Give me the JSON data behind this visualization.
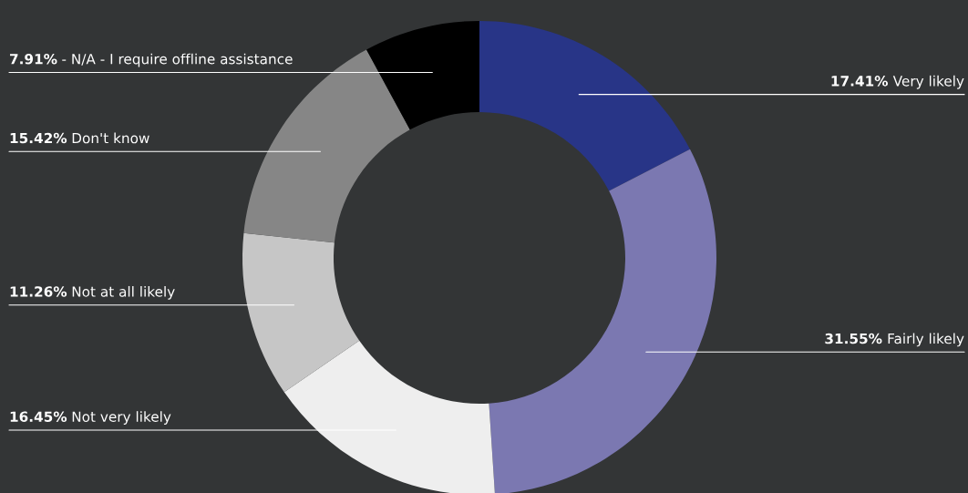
{
  "chart_data": {
    "type": "donut",
    "categories": [
      "Very likely",
      "Fairly likely",
      "Not very likely",
      "Not at all likely",
      "Don't know",
      "- N/A - I require offline assistance"
    ],
    "values": [
      17.41,
      31.55,
      16.45,
      11.26,
      15.42,
      7.91
    ],
    "value_labels": [
      "17.41%",
      "31.55%",
      "16.45%",
      "11.26%",
      "15.42%",
      "7.91%"
    ],
    "colors": [
      "#283587",
      "#7b78b1",
      "#eeeeee",
      "#c6c6c6",
      "#868686",
      "#000000"
    ],
    "legend": false
  }
}
